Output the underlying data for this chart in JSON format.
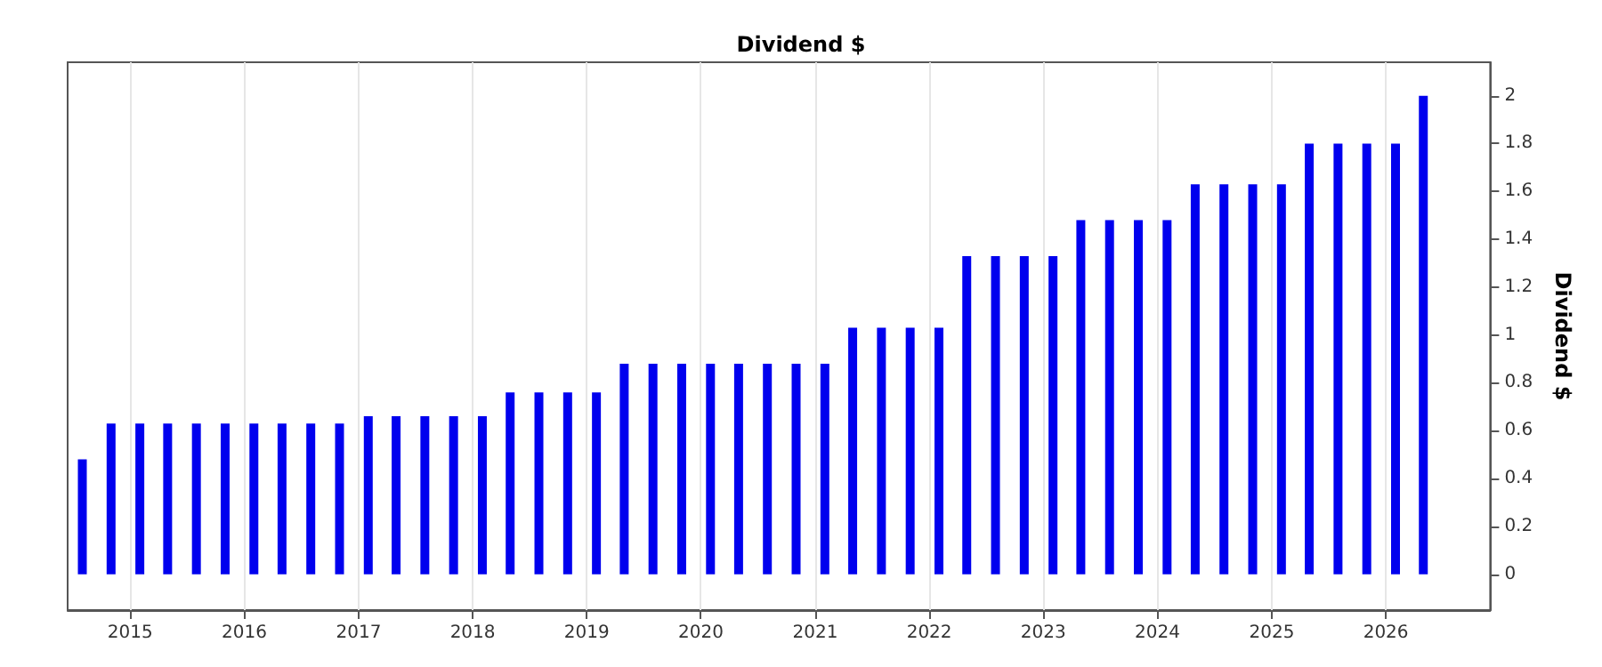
{
  "chart_data": {
    "type": "bar",
    "title": "Dividend $",
    "ylabel": "Dividend $",
    "x": [
      "2014-08",
      "2014-11",
      "2015-02",
      "2015-05",
      "2015-08",
      "2015-11",
      "2016-02",
      "2016-05",
      "2016-08",
      "2016-11",
      "2017-02",
      "2017-05",
      "2017-08",
      "2017-11",
      "2018-02",
      "2018-05",
      "2018-08",
      "2018-11",
      "2019-02",
      "2019-05",
      "2019-08",
      "2019-11",
      "2020-02",
      "2020-05",
      "2020-08",
      "2020-11",
      "2021-02",
      "2021-05",
      "2021-08",
      "2021-11",
      "2022-02",
      "2022-05",
      "2022-08",
      "2022-11",
      "2023-02",
      "2023-05",
      "2023-08",
      "2023-11",
      "2024-02",
      "2024-05",
      "2024-08",
      "2024-11",
      "2025-02",
      "2025-05",
      "2025-08",
      "2025-11",
      "2026-02",
      "2026-05"
    ],
    "values": [
      0.48,
      0.63,
      0.63,
      0.63,
      0.63,
      0.63,
      0.63,
      0.63,
      0.63,
      0.63,
      0.66,
      0.66,
      0.66,
      0.66,
      0.66,
      0.76,
      0.76,
      0.76,
      0.76,
      0.88,
      0.88,
      0.88,
      0.88,
      0.88,
      0.88,
      0.88,
      0.88,
      1.03,
      1.03,
      1.03,
      1.03,
      1.33,
      1.33,
      1.33,
      1.33,
      1.48,
      1.48,
      1.48,
      1.48,
      1.63,
      1.63,
      1.63,
      1.63,
      1.8,
      1.8,
      1.8,
      1.8,
      2.0
    ],
    "color": "#0000ee",
    "xlim": [
      "2014-06-15",
      "2026-12-01"
    ],
    "xticks": [
      "2015",
      "2016",
      "2017",
      "2018",
      "2019",
      "2020",
      "2021",
      "2022",
      "2023",
      "2024",
      "2025",
      "2026"
    ],
    "ylim": [
      -0.15,
      2.14
    ],
    "yticks": [
      0,
      0.2,
      0.4,
      0.6,
      0.8,
      1,
      1.2,
      1.4,
      1.6,
      1.8,
      2
    ],
    "grid": "x"
  }
}
